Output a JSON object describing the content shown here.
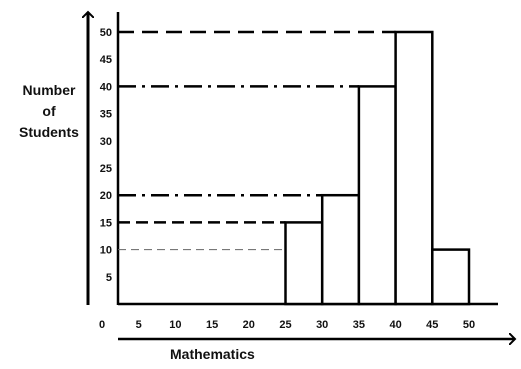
{
  "chart_data": {
    "type": "bar",
    "title": "",
    "xlabel": "Mathematics",
    "ylabel_lines": [
      "Number",
      "of",
      "Students"
    ],
    "x_ticks": [
      0,
      5,
      10,
      15,
      20,
      25,
      30,
      35,
      40,
      45,
      50
    ],
    "y_ticks": [
      5,
      10,
      15,
      20,
      25,
      30,
      35,
      40,
      45,
      50
    ],
    "xlim": [
      0,
      55
    ],
    "ylim": [
      0,
      50
    ],
    "bars": [
      {
        "from": 25,
        "to": 30,
        "value": 15
      },
      {
        "from": 30,
        "to": 35,
        "value": 20
      },
      {
        "from": 35,
        "to": 40,
        "value": 40
      },
      {
        "from": 40,
        "to": 45,
        "value": 50
      },
      {
        "from": 45,
        "to": 50,
        "value": 10
      }
    ],
    "reference_lines": [
      {
        "y": 50,
        "style": "long-dash"
      },
      {
        "y": 40,
        "style": "dash-dot"
      },
      {
        "y": 20,
        "style": "dash-dot"
      },
      {
        "y": 15,
        "style": "dash"
      },
      {
        "y": 10,
        "style": "thin-dash"
      }
    ],
    "grid": false,
    "legend": "none"
  }
}
